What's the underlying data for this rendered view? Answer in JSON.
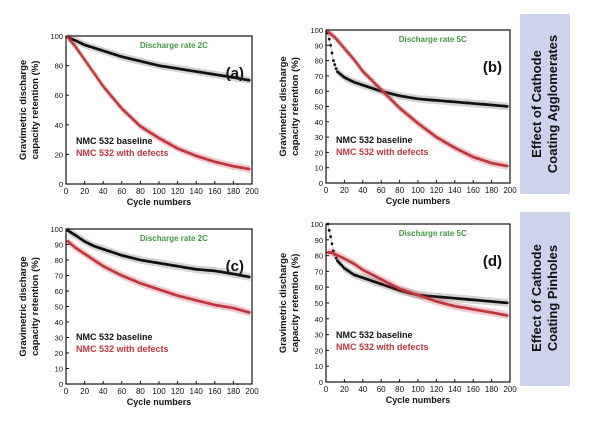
{
  "side_labels": [
    "Effect of Cathode Coating Agglomerates",
    "Effect of Cathode Coating Pinholes"
  ],
  "side_label_lines": [
    [
      "Effect of Cathode",
      "Coating Agglomerates"
    ],
    [
      "Effect of Cathode",
      "Coating Pinholes"
    ]
  ],
  "colors": {
    "baseline": "#111111",
    "defects": "#c0373f",
    "rate_text": "#3f9b3f",
    "side_panel": "#ccd3ea"
  },
  "chart_data": [
    {
      "panel": "(a)",
      "type": "line",
      "annotation": "Discharge rate 2C",
      "xlabel": "Cycle numbers",
      "ylabel": "Gravimetric discharge capacity retention (%)",
      "xlim": [
        0,
        200
      ],
      "ylim": [
        0,
        100
      ],
      "xticks": [
        0,
        20,
        40,
        60,
        80,
        100,
        120,
        140,
        160,
        180,
        200
      ],
      "yticks": [
        0,
        20,
        40,
        60,
        80,
        100
      ],
      "series": [
        {
          "name": "NMC  532 baseline",
          "color": "#111111",
          "x": [
            2,
            10,
            20,
            30,
            40,
            60,
            80,
            100,
            120,
            140,
            160,
            180,
            198
          ],
          "y": [
            99,
            97,
            94,
            92,
            90,
            86,
            83,
            80,
            78,
            76,
            74,
            72,
            70
          ]
        },
        {
          "name": "NMC  532 with defects",
          "color": "#c0373f",
          "x": [
            2,
            10,
            20,
            30,
            40,
            60,
            80,
            100,
            120,
            140,
            160,
            180,
            198
          ],
          "y": [
            99,
            93,
            84,
            75,
            66,
            51,
            39,
            31,
            24,
            19,
            15,
            12,
            10
          ]
        }
      ],
      "legend": "bottom-left"
    },
    {
      "panel": "(b)",
      "type": "line",
      "annotation": "Discharge rate 5C",
      "xlabel": "Cycle numbers",
      "ylabel": "Gravimetric discharge capacity retention (%)",
      "xlim": [
        0,
        200
      ],
      "ylim": [
        0,
        100
      ],
      "xticks": [
        0,
        20,
        40,
        60,
        80,
        100,
        120,
        140,
        160,
        180,
        200
      ],
      "yticks": [
        0,
        10,
        20,
        30,
        40,
        50,
        60,
        70,
        80,
        90,
        100
      ],
      "series": [
        {
          "name": "NMC  532 baseline",
          "color": "#111111",
          "x": [
            2,
            5,
            8,
            12,
            20,
            30,
            40,
            60,
            80,
            100,
            120,
            140,
            160,
            180,
            198
          ],
          "y": [
            98,
            90,
            80,
            73,
            69,
            66,
            64,
            60,
            57,
            55,
            54,
            53,
            52,
            51,
            50
          ]
        },
        {
          "name": "NMC  532 with defects",
          "color": "#c0373f",
          "x": [
            2,
            10,
            20,
            30,
            40,
            50,
            60,
            80,
            100,
            120,
            140,
            160,
            180,
            198
          ],
          "y": [
            99,
            95,
            88,
            81,
            73,
            67,
            61,
            49,
            39,
            30,
            23,
            17,
            13,
            11
          ]
        }
      ],
      "legend": "bottom-left"
    },
    {
      "panel": "(c)",
      "type": "line",
      "annotation": "Discharge rate 2C",
      "xlabel": "Cycle numbers",
      "ylabel": "Gravimetric discharge capacity retention (%)",
      "xlim": [
        0,
        200
      ],
      "ylim": [
        0,
        100
      ],
      "xticks": [
        0,
        20,
        40,
        60,
        80,
        100,
        120,
        140,
        160,
        180,
        200
      ],
      "yticks": [
        0,
        10,
        20,
        30,
        40,
        50,
        60,
        70,
        80,
        90,
        100
      ],
      "series": [
        {
          "name": "NMC  532 baseline",
          "color": "#111111",
          "x": [
            2,
            10,
            20,
            30,
            40,
            60,
            80,
            100,
            120,
            140,
            160,
            180,
            198
          ],
          "y": [
            99,
            96,
            92,
            89,
            87,
            83,
            80,
            78,
            76,
            74,
            73,
            71,
            69
          ]
        },
        {
          "name": "NMC  532 with defects",
          "color": "#c0373f",
          "x": [
            2,
            10,
            20,
            30,
            40,
            60,
            80,
            100,
            120,
            140,
            160,
            180,
            198
          ],
          "y": [
            92,
            88,
            84,
            80,
            76,
            70,
            65,
            61,
            57,
            54,
            51,
            49,
            46
          ]
        }
      ],
      "legend": "bottom-left"
    },
    {
      "panel": "(d)",
      "type": "line",
      "annotation": "Discharge rate 5C",
      "xlabel": "Cycle numbers",
      "ylabel": "Gravimetric discharge capacity retention (%)",
      "xlim": [
        0,
        200
      ],
      "ylim": [
        0,
        100
      ],
      "xticks": [
        0,
        20,
        40,
        60,
        80,
        100,
        120,
        140,
        160,
        180,
        200
      ],
      "yticks": [
        0,
        10,
        20,
        30,
        40,
        50,
        60,
        70,
        80,
        90,
        100
      ],
      "series": [
        {
          "name": "NMC  532 baseline",
          "color": "#111111",
          "x": [
            2,
            5,
            8,
            12,
            20,
            30,
            40,
            60,
            80,
            100,
            120,
            140,
            160,
            180,
            198
          ],
          "y": [
            100,
            92,
            83,
            77,
            72,
            68,
            66,
            62,
            58,
            55,
            54,
            53,
            52,
            51,
            50
          ]
        },
        {
          "name": "NMC  532 with defects",
          "color": "#c0373f",
          "x": [
            2,
            5,
            10,
            20,
            30,
            40,
            60,
            80,
            100,
            120,
            140,
            160,
            180,
            198
          ],
          "y": [
            82,
            82,
            81,
            78,
            75,
            71,
            65,
            59,
            55,
            51,
            48,
            46,
            44,
            42
          ]
        }
      ],
      "legend": "bottom-left"
    }
  ]
}
